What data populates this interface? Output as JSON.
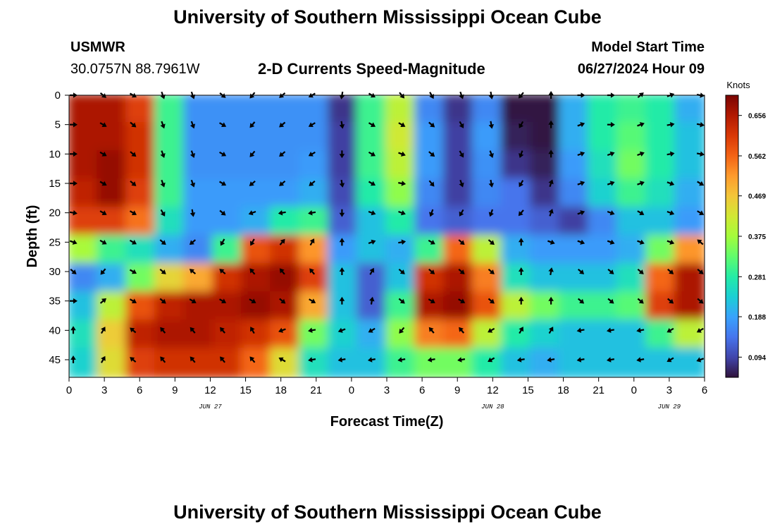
{
  "header": {
    "title": "University of Southern Mississippi Ocean Cube",
    "station": "USMWR",
    "coords": "30.0757N  88.7961W",
    "subtitle": "2-D Currents Speed-Magnitude",
    "model_start_label": "Model Start Time",
    "model_start_value": "06/27/2024 Hour 09"
  },
  "footer": {
    "title": "University of Southern Mississippi Ocean Cube"
  },
  "colors": {
    "colormap": [
      "#30123b",
      "#4145ab",
      "#4675ed",
      "#39a2fc",
      "#1bcfd4",
      "#24eca6",
      "#61fc6c",
      "#a4fc3b",
      "#d1e834",
      "#f3c63a",
      "#fe9b2d",
      "#f36315",
      "#d93806",
      "#b11901",
      "#7a0402"
    ]
  },
  "chart_data": {
    "type": "heatmap",
    "title": "2-D Currents Speed-Magnitude",
    "xlabel": "Forecast Time(Z)",
    "ylabel": "Depth (ft)",
    "x_tick_labels": [
      "0",
      "3",
      "6",
      "9",
      "12",
      "15",
      "18",
      "21",
      "0",
      "3",
      "6",
      "9",
      "12",
      "15",
      "18",
      "21",
      "0",
      "3",
      "6"
    ],
    "x_hours": [
      0,
      3,
      6,
      9,
      12,
      15,
      18,
      21,
      24,
      27,
      30,
      33,
      36,
      39,
      42,
      45,
      48,
      51,
      54
    ],
    "date_labels": [
      {
        "label": "JUN 27",
        "hour": 12
      },
      {
        "label": "JUN 28",
        "hour": 36
      },
      {
        "label": "JUN 29",
        "hour": 51
      }
    ],
    "y_tick_labels": [
      "0",
      "5",
      "10",
      "15",
      "20",
      "25",
      "30",
      "35",
      "40",
      "45"
    ],
    "depths_ft": [
      0,
      5,
      10,
      15,
      20,
      25,
      30,
      35,
      40,
      45
    ],
    "ylim": [
      0,
      48
    ],
    "xlim": [
      0,
      54
    ],
    "colorbar": {
      "label": "Knots",
      "ticks": [
        "0.094",
        "0.188",
        "0.281",
        "0.375",
        "0.469",
        "0.562",
        "0.656"
      ],
      "tick_values": [
        0.094,
        0.188,
        0.281,
        0.375,
        0.469,
        0.562,
        0.656
      ],
      "min": 0.047,
      "max": 0.703
    },
    "speed_knots": [
      [
        0.66,
        0.66,
        0.6,
        0.3,
        0.17,
        0.17,
        0.17,
        0.17,
        0.17,
        0.08,
        0.3,
        0.4,
        0.16,
        0.08,
        0.16,
        0.05,
        0.05,
        0.2,
        0.28,
        0.3,
        0.28,
        0.2
      ],
      [
        0.66,
        0.66,
        0.62,
        0.3,
        0.17,
        0.17,
        0.17,
        0.17,
        0.17,
        0.09,
        0.3,
        0.42,
        0.18,
        0.09,
        0.18,
        0.06,
        0.05,
        0.2,
        0.28,
        0.32,
        0.28,
        0.22
      ],
      [
        0.66,
        0.68,
        0.62,
        0.3,
        0.17,
        0.17,
        0.17,
        0.17,
        0.18,
        0.09,
        0.3,
        0.4,
        0.18,
        0.09,
        0.17,
        0.08,
        0.06,
        0.18,
        0.26,
        0.34,
        0.28,
        0.22
      ],
      [
        0.64,
        0.68,
        0.6,
        0.3,
        0.18,
        0.18,
        0.18,
        0.18,
        0.2,
        0.1,
        0.28,
        0.36,
        0.16,
        0.09,
        0.16,
        0.14,
        0.08,
        0.16,
        0.24,
        0.3,
        0.26,
        0.2
      ],
      [
        0.6,
        0.6,
        0.55,
        0.26,
        0.18,
        0.18,
        0.2,
        0.28,
        0.3,
        0.12,
        0.22,
        0.28,
        0.14,
        0.12,
        0.14,
        0.14,
        0.12,
        0.09,
        0.16,
        0.22,
        0.22,
        0.18
      ],
      [
        0.38,
        0.3,
        0.26,
        0.2,
        0.16,
        0.3,
        0.58,
        0.62,
        0.52,
        0.18,
        0.22,
        0.2,
        0.3,
        0.56,
        0.4,
        0.2,
        0.18,
        0.18,
        0.18,
        0.2,
        0.34,
        0.52
      ],
      [
        0.16,
        0.2,
        0.34,
        0.45,
        0.5,
        0.62,
        0.66,
        0.68,
        0.6,
        0.22,
        0.12,
        0.22,
        0.62,
        0.66,
        0.54,
        0.26,
        0.22,
        0.22,
        0.22,
        0.26,
        0.56,
        0.66
      ],
      [
        0.22,
        0.4,
        0.58,
        0.64,
        0.66,
        0.66,
        0.68,
        0.66,
        0.5,
        0.22,
        0.12,
        0.3,
        0.66,
        0.68,
        0.58,
        0.4,
        0.34,
        0.3,
        0.3,
        0.32,
        0.6,
        0.66
      ],
      [
        0.26,
        0.46,
        0.64,
        0.66,
        0.66,
        0.64,
        0.62,
        0.58,
        0.34,
        0.24,
        0.2,
        0.36,
        0.54,
        0.56,
        0.4,
        0.28,
        0.24,
        0.22,
        0.22,
        0.22,
        0.3,
        0.4
      ],
      [
        0.24,
        0.44,
        0.6,
        0.62,
        0.62,
        0.62,
        0.56,
        0.44,
        0.26,
        0.22,
        0.22,
        0.3,
        0.34,
        0.34,
        0.28,
        0.22,
        0.2,
        0.22,
        0.22,
        0.22,
        0.22,
        0.22
      ]
    ],
    "vector_angles_deg": [
      [
        0,
        40,
        30,
        70,
        70,
        40,
        130,
        140,
        150,
        100,
        30,
        50,
        60,
        70,
        80,
        130,
        -90,
        0,
        0,
        -40,
        -20,
        10
      ],
      [
        0,
        30,
        40,
        70,
        70,
        30,
        130,
        140,
        150,
        80,
        30,
        30,
        40,
        60,
        80,
        120,
        -90,
        -20,
        0,
        -20,
        -10,
        10
      ],
      [
        0,
        30,
        40,
        70,
        70,
        30,
        130,
        140,
        150,
        90,
        30,
        20,
        40,
        60,
        70,
        110,
        -90,
        -20,
        -20,
        -20,
        -10,
        10
      ],
      [
        0,
        30,
        40,
        70,
        70,
        30,
        140,
        140,
        140,
        80,
        30,
        10,
        50,
        70,
        80,
        120,
        -70,
        -20,
        -20,
        -20,
        20,
        30
      ],
      [
        10,
        30,
        30,
        60,
        80,
        40,
        160,
        170,
        170,
        90,
        20,
        20,
        110,
        120,
        110,
        130,
        -70,
        -20,
        20,
        30,
        20,
        30
      ],
      [
        20,
        30,
        30,
        40,
        140,
        120,
        120,
        -50,
        -60,
        -90,
        -20,
        -10,
        30,
        40,
        40,
        -90,
        20,
        20,
        20,
        20,
        20,
        -140
      ],
      [
        40,
        130,
        30,
        40,
        -140,
        -140,
        -130,
        -130,
        -130,
        -90,
        -60,
        40,
        40,
        40,
        40,
        -90,
        -80,
        40,
        40,
        40,
        40,
        40
      ],
      [
        0,
        -40,
        30,
        40,
        30,
        30,
        30,
        40,
        30,
        -90,
        -80,
        40,
        30,
        30,
        40,
        -90,
        -90,
        40,
        40,
        40,
        40,
        40
      ],
      [
        -90,
        -60,
        -140,
        -130,
        -130,
        -130,
        -120,
        160,
        170,
        160,
        150,
        130,
        -130,
        -130,
        150,
        -60,
        -60,
        170,
        170,
        170,
        150,
        150
      ],
      [
        -90,
        -60,
        -140,
        -130,
        -130,
        -130,
        -130,
        -150,
        170,
        170,
        170,
        170,
        170,
        170,
        150,
        170,
        170,
        170,
        170,
        170,
        150,
        160
      ]
    ]
  }
}
